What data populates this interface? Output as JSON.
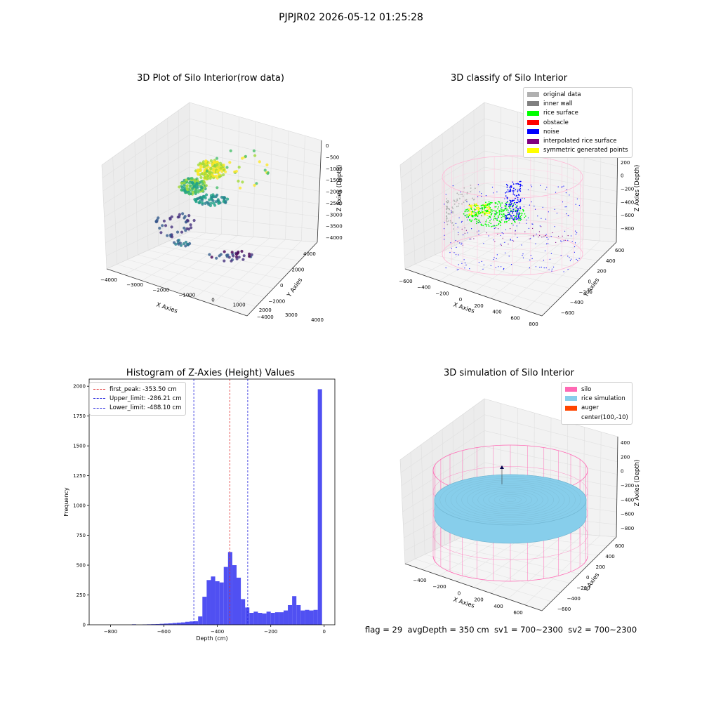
{
  "figure": {
    "suptitle": "PJPJR02 2026-05-12 01:25:28",
    "footer": "flag = 29  avgDepth = 350 cm  sv1 = 700~2300  sv2 = 700~2300"
  },
  "colors": {
    "hist_bar": "#5050f2",
    "peak_line": "#e03030",
    "limit_line": "#2020dd",
    "silo": "#ff69b4",
    "rice_simulation": "#87ceeb",
    "auger": "#ff4500",
    "noise": "#0000ff",
    "rice_surface": "#00ff00",
    "original_data": "#b0b0b0",
    "inner_wall": "#808080",
    "obstacle": "#ff0000",
    "interpolated_rice_surface": "#800080",
    "symmetric_generated_points": "#ffff00"
  },
  "chart_data": [
    {
      "type": "scatter",
      "projection": "3d",
      "title": "3D Plot of Silo Interior(row data)",
      "xlabel": "X Axies",
      "ylabel": "Y Axies",
      "zlabel": "Z Axies (Depth)",
      "xticks": [
        "−4000",
        "−3000",
        "−2000",
        "−1000",
        "0",
        "1000",
        "2000",
        "3000",
        "4000"
      ],
      "yticks": [
        "−4000",
        "−2000",
        "0",
        "2000",
        "4000"
      ],
      "zticks": [
        "0",
        "−500",
        "−1000",
        "−1500",
        "−2000",
        "−2500",
        "−3000",
        "−3500",
        "−4000"
      ],
      "colormap": "viridis"
    },
    {
      "type": "scatter",
      "projection": "3d",
      "title": "3D classify of Silo Interior",
      "xlabel": "X Axies",
      "ylabel": "Y Axies",
      "zlabel": "Z Axies (Depth)",
      "xticks": [
        "−600",
        "−400",
        "−200",
        "0",
        "200",
        "400",
        "600",
        "800"
      ],
      "yticks": [
        "−600",
        "−400",
        "−200",
        "0",
        "200",
        "400",
        "600"
      ],
      "zticks": [
        "400",
        "200",
        "0",
        "−200",
        "−400",
        "−600",
        "−800"
      ],
      "legend": [
        "original data",
        "inner wall",
        "rice surface",
        "obstacle",
        "noise",
        "interpolated rice surface",
        "symmetric generated points"
      ],
      "legend_colors": [
        "#b0b0b0",
        "#808080",
        "#00ff00",
        "#ff0000",
        "#0000ff",
        "#800080",
        "#ffff00"
      ],
      "legend_loc": "upper right"
    },
    {
      "type": "bar",
      "title": "Histogram of Z-Axies (Height) Values",
      "xlabel": "Depth (cm)",
      "ylabel": "Frequency",
      "xlim": [
        -880,
        40
      ],
      "ylim": [
        0,
        2060
      ],
      "xticks": [
        -800,
        -600,
        -400,
        -200,
        0
      ],
      "yticks": [
        0,
        250,
        500,
        750,
        1000,
        1250,
        1500,
        1750,
        2000
      ],
      "bin_width": 16,
      "bins": [
        {
          "x": -720,
          "y": 4
        },
        {
          "x": -680,
          "y": 3
        },
        {
          "x": -664,
          "y": 4
        },
        {
          "x": -648,
          "y": 5
        },
        {
          "x": -632,
          "y": 6
        },
        {
          "x": -616,
          "y": 8
        },
        {
          "x": -600,
          "y": 10
        },
        {
          "x": -584,
          "y": 12
        },
        {
          "x": -568,
          "y": 15
        },
        {
          "x": -552,
          "y": 18
        },
        {
          "x": -536,
          "y": 20
        },
        {
          "x": -520,
          "y": 25
        },
        {
          "x": -504,
          "y": 28
        },
        {
          "x": -488,
          "y": 30
        },
        {
          "x": -472,
          "y": 70
        },
        {
          "x": -456,
          "y": 235
        },
        {
          "x": -440,
          "y": 375
        },
        {
          "x": -424,
          "y": 405
        },
        {
          "x": -408,
          "y": 365
        },
        {
          "x": -392,
          "y": 355
        },
        {
          "x": -376,
          "y": 485
        },
        {
          "x": -360,
          "y": 610
        },
        {
          "x": -344,
          "y": 500
        },
        {
          "x": -328,
          "y": 395
        },
        {
          "x": -312,
          "y": 215
        },
        {
          "x": -296,
          "y": 145
        },
        {
          "x": -280,
          "y": 100
        },
        {
          "x": -264,
          "y": 110
        },
        {
          "x": -248,
          "y": 100
        },
        {
          "x": -232,
          "y": 95
        },
        {
          "x": -216,
          "y": 110
        },
        {
          "x": -200,
          "y": 100
        },
        {
          "x": -184,
          "y": 105
        },
        {
          "x": -168,
          "y": 105
        },
        {
          "x": -152,
          "y": 120
        },
        {
          "x": -136,
          "y": 165
        },
        {
          "x": -120,
          "y": 240
        },
        {
          "x": -104,
          "y": 165
        },
        {
          "x": -88,
          "y": 120
        },
        {
          "x": -72,
          "y": 125
        },
        {
          "x": -56,
          "y": 120
        },
        {
          "x": -40,
          "y": 125
        },
        {
          "x": -24,
          "y": 1975
        }
      ],
      "vlines": [
        {
          "x": -353.5,
          "label": "first_peak: -353.50 cm",
          "kind": "peak"
        },
        {
          "x": -286.21,
          "label": "Upper_limit: -286.21 cm",
          "kind": "limit"
        },
        {
          "x": -488.1,
          "label": "Lower_limit: -488.10 cm",
          "kind": "limit"
        }
      ],
      "legend_loc": "upper left"
    },
    {
      "type": "surface",
      "projection": "3d",
      "title": "3D simulation of Silo Interior",
      "xlabel": "X Axies",
      "ylabel": "Y Axies",
      "zlabel": "Z Axies (Depth)",
      "xticks": [
        "−400",
        "−200",
        "0",
        "200",
        "400",
        "600"
      ],
      "yticks": [
        "−600",
        "−400",
        "−200",
        "0",
        "200",
        "400",
        "600"
      ],
      "zticks": [
        "400",
        "200",
        "0",
        "−200",
        "−400",
        "−600",
        "−800"
      ],
      "legend": [
        "silo",
        "rice simulation",
        "auger",
        "center(100,-10)"
      ],
      "legend_colors": [
        "#ff69b4",
        "#87ceeb",
        "#ff4500",
        ""
      ],
      "legend_loc": "upper right"
    }
  ]
}
